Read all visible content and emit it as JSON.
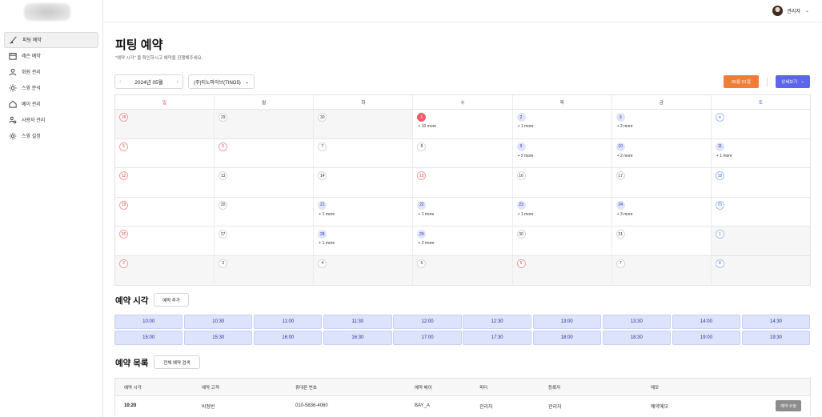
{
  "sidebar": {
    "items": [
      {
        "label": "피팅 예약",
        "icon": "club-icon",
        "active": true
      },
      {
        "label": "레슨 예약",
        "icon": "calendar-icon",
        "active": false
      },
      {
        "label": "회원 관리",
        "icon": "user-icon",
        "active": false
      },
      {
        "label": "스윙 분석",
        "icon": "sun-icon",
        "active": false
      },
      {
        "label": "베이 관리",
        "icon": "home-icon",
        "active": false
      },
      {
        "label": "사용자 관리",
        "icon": "users-gear-icon",
        "active": false
      },
      {
        "label": "스윙 설정",
        "icon": "gear-icon",
        "active": false
      }
    ]
  },
  "topbar": {
    "user_name": "관리자"
  },
  "page": {
    "title": "피팅 예약",
    "subtitle": "\"예약 시각\" 을 확인하시고 예약을 진행해주세요.",
    "month_label": "2024년 05월",
    "store": "(주)티노파이브(TINO5)",
    "today_btn": "05월 01일",
    "detail_btn": "상세보기"
  },
  "calendar": {
    "weekdays": [
      "일",
      "월",
      "화",
      "수",
      "목",
      "금",
      "토"
    ],
    "weeks": [
      [
        {
          "d": "28",
          "o": true,
          "t": "sun"
        },
        {
          "d": "29",
          "o": true
        },
        {
          "d": "30",
          "o": true
        },
        {
          "d": "1",
          "today": true,
          "more": "+ 10 more"
        },
        {
          "d": "2",
          "has": true,
          "more": "+ 1 more"
        },
        {
          "d": "3",
          "has": true,
          "more": "+ 2 more"
        },
        {
          "d": "4",
          "t": "sat"
        }
      ],
      [
        {
          "d": "5",
          "t": "sun"
        },
        {
          "d": "6",
          "t": "sun"
        },
        {
          "d": "7"
        },
        {
          "d": "8"
        },
        {
          "d": "9",
          "has": true,
          "more": "+ 2 more"
        },
        {
          "d": "10",
          "has": true,
          "more": "+ 2 more"
        },
        {
          "d": "11",
          "t": "sat",
          "has": true,
          "more": "+ 1 more"
        }
      ],
      [
        {
          "d": "12",
          "t": "sun"
        },
        {
          "d": "13"
        },
        {
          "d": "14"
        },
        {
          "d": "15",
          "t": "sun"
        },
        {
          "d": "16"
        },
        {
          "d": "17"
        },
        {
          "d": "18",
          "t": "sat"
        }
      ],
      [
        {
          "d": "19",
          "t": "sun"
        },
        {
          "d": "20"
        },
        {
          "d": "21",
          "has": true,
          "more": "+ 1 more"
        },
        {
          "d": "22",
          "has": true,
          "more": "+ 1 more"
        },
        {
          "d": "23",
          "has": true,
          "more": "+ 1 more"
        },
        {
          "d": "24",
          "has": true,
          "more": "+ 3 more"
        },
        {
          "d": "25",
          "t": "sat"
        }
      ],
      [
        {
          "d": "26",
          "t": "sun"
        },
        {
          "d": "27"
        },
        {
          "d": "28",
          "has": true,
          "more": "+ 1 more"
        },
        {
          "d": "29",
          "has": true,
          "more": "+ 2 more"
        },
        {
          "d": "30"
        },
        {
          "d": "31"
        },
        {
          "d": "1",
          "o": true,
          "t": "sat"
        }
      ],
      [
        {
          "d": "2",
          "o": true,
          "t": "sun"
        },
        {
          "d": "3",
          "o": true
        },
        {
          "d": "4",
          "o": true
        },
        {
          "d": "5",
          "o": true
        },
        {
          "d": "6",
          "o": true,
          "t": "sun"
        },
        {
          "d": "7",
          "o": true
        },
        {
          "d": "8",
          "o": true,
          "t": "sat"
        }
      ]
    ]
  },
  "slots_section": {
    "title": "예약 시각",
    "add_btn": "예약 추가",
    "slots": [
      "10:00",
      "10:30",
      "11:00",
      "11:30",
      "12:00",
      "12:30",
      "13:00",
      "13:30",
      "14:00",
      "14:30",
      "15:00",
      "15:30",
      "16:00",
      "16:30",
      "17:00",
      "17:30",
      "18:00",
      "18:30",
      "19:00",
      "19:30"
    ]
  },
  "list_section": {
    "title": "예약 목록",
    "search_btn": "전체 예약 검색",
    "columns": [
      "예약 시각",
      "예약 고객",
      "휴대폰 번호",
      "예약 베이",
      "피터",
      "등록자",
      "메모"
    ],
    "rows": [
      {
        "time": "10:20",
        "customer": "박정빈",
        "phone": "010-5836-4060",
        "bay": "BAY_A",
        "fitter": "관리자",
        "registrar": "관리자",
        "memo": "예약메모",
        "action": "예약 수정"
      }
    ]
  }
}
